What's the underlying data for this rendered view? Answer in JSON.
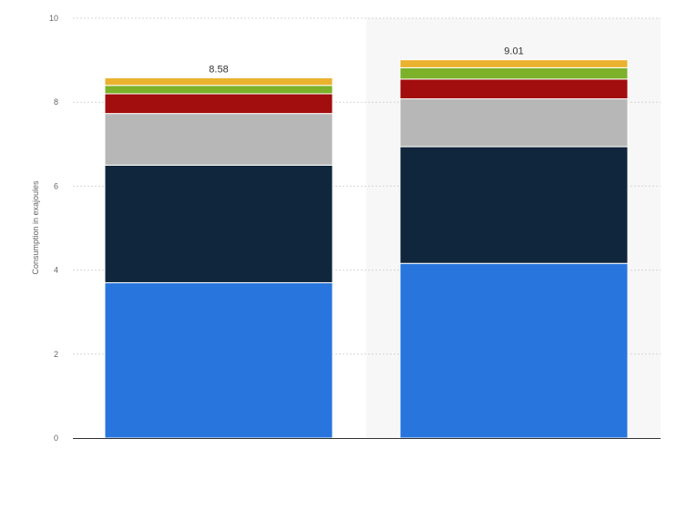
{
  "chart_data": {
    "type": "bar",
    "stacked": true,
    "categories": [
      "",
      ""
    ],
    "ylabel": "Consumption in exajoules",
    "xlabel": "",
    "ylim": [
      0,
      10
    ],
    "yticks": [
      "0",
      "2",
      "4",
      "6",
      "8",
      "10"
    ],
    "grid": true,
    "legend": "none",
    "totals": [
      "8.58",
      "9.01"
    ],
    "series": [
      {
        "color": "#2876dd",
        "values": [
          3.7,
          4.16
        ]
      },
      {
        "color": "#10263c",
        "values": [
          2.8,
          2.78
        ]
      },
      {
        "color": "#b7b7b7",
        "values": [
          1.23,
          1.14
        ]
      },
      {
        "color": "#a20d0d",
        "values": [
          0.47,
          0.47
        ]
      },
      {
        "color": "#7cb129",
        "values": [
          0.2,
          0.27
        ]
      },
      {
        "color": "#eab22e",
        "values": [
          0.18,
          0.19
        ]
      }
    ]
  }
}
